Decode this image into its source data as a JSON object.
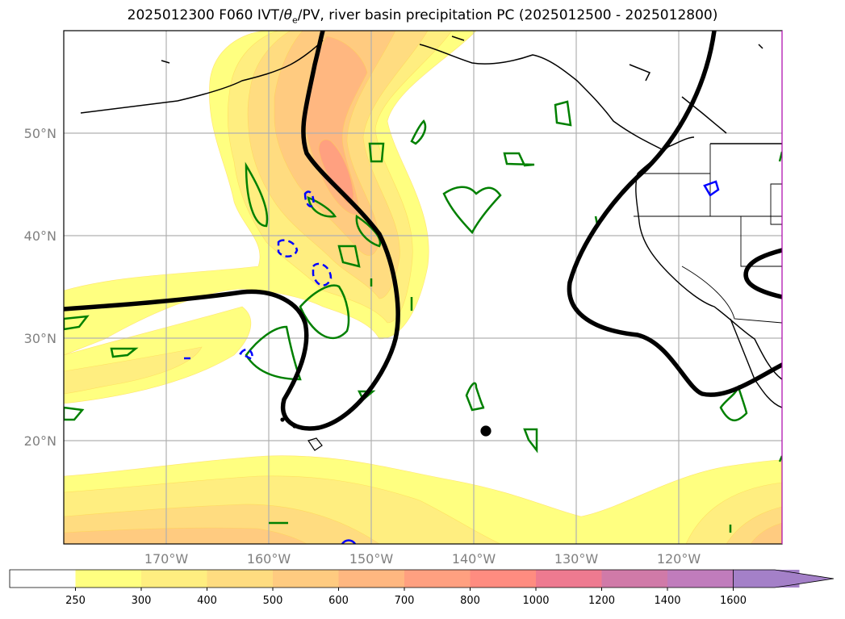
{
  "title": {
    "prefix": "2025012300 F060 IVT/",
    "theta": "θ",
    "theta_sub": "e",
    "suffix": "/PV, river basin precipitation PC (2025012500 - 2025012800)"
  },
  "map": {
    "lat_labels": [
      "50°N",
      "40°N",
      "30°N",
      "20°N"
    ],
    "lon_labels": [
      "170°W",
      "160°W",
      "150°W",
      "140°W",
      "130°W",
      "120°W"
    ],
    "ivt_colors": [
      "#ffff80",
      "#ffee80",
      "#ffdc80",
      "#ffcb80",
      "#ffb780",
      "#ffa080"
    ],
    "pv_contour_color": "#000000",
    "theta_e_color": "#008000",
    "negative_contour_color": "#0000ff"
  },
  "colorbar": {
    "ticks": [
      "250",
      "300",
      "400",
      "500",
      "600",
      "700",
      "800",
      "1000",
      "1200",
      "1400",
      "1600"
    ],
    "colors": [
      "#ffffff",
      "#ffff80",
      "#ffee80",
      "#ffdc80",
      "#ffcb80",
      "#ffb780",
      "#ffa080",
      "#ff8c80",
      "#ee7a90",
      "#d07aa8",
      "#c07cbc",
      "#a480c8"
    ]
  }
}
